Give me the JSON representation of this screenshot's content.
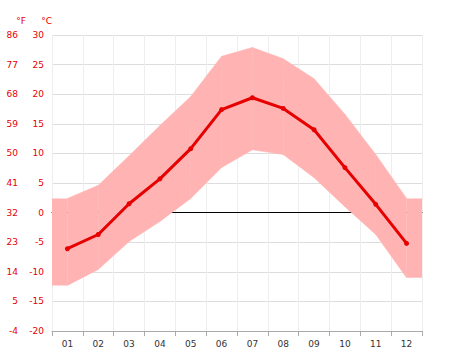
{
  "chart_data": {
    "type": "line",
    "categories": [
      "01",
      "02",
      "03",
      "04",
      "05",
      "06",
      "07",
      "08",
      "09",
      "10",
      "11",
      "12"
    ],
    "values": [
      -6.1,
      -3.7,
      1.5,
      5.7,
      10.8,
      17.4,
      19.4,
      17.6,
      14.0,
      7.6,
      1.4,
      -5.2
    ],
    "lows": [
      -12.3,
      -9.6,
      -4.9,
      -1.5,
      2.4,
      7.6,
      10.6,
      9.8,
      5.9,
      1.0,
      -3.7,
      -11.0
    ],
    "highs": [
      2.4,
      4.6,
      9.6,
      14.7,
      19.6,
      26.4,
      27.9,
      26.0,
      22.6,
      16.6,
      9.8,
      2.4
    ],
    "color": "#e60000",
    "marker": "circle",
    "ylabel": "°C",
    "ylim": [
      -20,
      30
    ],
    "yticks": [
      -20,
      -15,
      -10,
      -5,
      0,
      5,
      10,
      15,
      20,
      25,
      30
    ],
    "y2label": "°F",
    "y2lim": [
      -4,
      86
    ],
    "y2ticks": [
      -4,
      5,
      14,
      23,
      32,
      41,
      50,
      59,
      68,
      77,
      86
    ],
    "grid": true
  }
}
